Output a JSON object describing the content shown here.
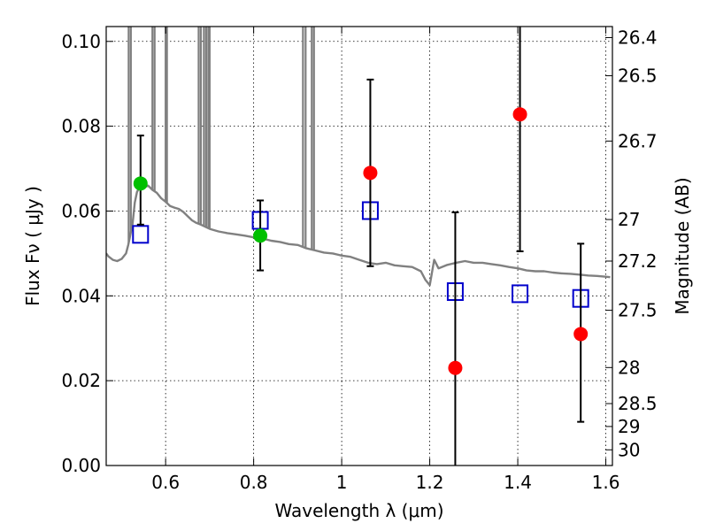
{
  "chart_data": {
    "type": "scatter",
    "xlabel": "Wavelength  λ (μm)",
    "ylabel": "Flux  Fν  ( μJy )",
    "ylabel_right": "Magnitude (AB)",
    "xlim": [
      0.465,
      1.615
    ],
    "ylim": [
      0.0,
      0.1035
    ],
    "grid": true,
    "x_ticks": [
      0.6,
      0.8,
      1.0,
      1.2,
      1.4,
      1.6
    ],
    "x_tick_labels": [
      "0.6",
      "0.8",
      "1",
      "1.2",
      "1.4",
      "1.6"
    ],
    "y_ticks": [
      0.0,
      0.02,
      0.04,
      0.06,
      0.08,
      0.1
    ],
    "y_tick_labels": [
      "0.00",
      "0.02",
      "0.04",
      "0.06",
      "0.08",
      "0.10"
    ],
    "mag_ticks": [
      {
        "label": "26.4",
        "flux": 0.1009
      },
      {
        "label": "26.5",
        "flux": 0.0919
      },
      {
        "label": "26.7",
        "flux": 0.0765
      },
      {
        "label": "27",
        "flux": 0.058
      },
      {
        "label": "27.2",
        "flux": 0.0482
      },
      {
        "label": "27.5",
        "flux": 0.0366
      },
      {
        "label": "28",
        "flux": 0.0231
      },
      {
        "label": "28.5",
        "flux": 0.0146
      },
      {
        "label": "29",
        "flux": 0.0092
      },
      {
        "label": "30",
        "flux": 0.0037
      }
    ],
    "series": [
      {
        "name": "template SED",
        "style": "line",
        "color": "#808080",
        "x": [
          0.465,
          0.47,
          0.48,
          0.49,
          0.5,
          0.51,
          0.515,
          0.52,
          0.525,
          0.53,
          0.535,
          0.54,
          0.55,
          0.56,
          0.57,
          0.58,
          0.59,
          0.6,
          0.61,
          0.62,
          0.63,
          0.64,
          0.65,
          0.66,
          0.67,
          0.68,
          0.69,
          0.7,
          0.72,
          0.74,
          0.76,
          0.78,
          0.8,
          0.82,
          0.84,
          0.86,
          0.88,
          0.9,
          0.92,
          0.94,
          0.96,
          0.98,
          1.0,
          1.02,
          1.04,
          1.06,
          1.08,
          1.1,
          1.12,
          1.14,
          1.16,
          1.18,
          1.19,
          1.2,
          1.21,
          1.22,
          1.24,
          1.26,
          1.28,
          1.3,
          1.32,
          1.34,
          1.36,
          1.38,
          1.4,
          1.42,
          1.44,
          1.46,
          1.48,
          1.5,
          1.52,
          1.54,
          1.56,
          1.58,
          1.6,
          1.61
        ],
        "y": [
          0.05,
          0.0493,
          0.0485,
          0.0482,
          0.0487,
          0.05,
          0.052,
          0.0545,
          0.057,
          0.062,
          0.0645,
          0.0655,
          0.0655,
          0.066,
          0.065,
          0.0643,
          0.063,
          0.0622,
          0.0612,
          0.0608,
          0.0605,
          0.0598,
          0.0588,
          0.0578,
          0.0572,
          0.0568,
          0.0563,
          0.0558,
          0.0552,
          0.0548,
          0.0545,
          0.0542,
          0.0538,
          0.0535,
          0.053,
          0.0527,
          0.0522,
          0.052,
          0.0512,
          0.0507,
          0.0502,
          0.05,
          0.0495,
          0.0492,
          0.0485,
          0.0478,
          0.0475,
          0.0478,
          0.0472,
          0.047,
          0.0468,
          0.0458,
          0.0438,
          0.0425,
          0.0485,
          0.0465,
          0.0473,
          0.0478,
          0.0482,
          0.0478,
          0.0478,
          0.0475,
          0.0472,
          0.0468,
          0.0465,
          0.046,
          0.0458,
          0.0458,
          0.0455,
          0.0453,
          0.0452,
          0.045,
          0.0448,
          0.0447,
          0.0445,
          0.0444
        ]
      },
      {
        "name": "emission spikes",
        "style": "spikes",
        "color": "#808080",
        "x": [
          0.516,
          0.521,
          0.57,
          0.575,
          0.6,
          0.603,
          0.675,
          0.68,
          0.687,
          0.692,
          0.697,
          0.7,
          0.912,
          0.918,
          0.932,
          0.937
        ]
      },
      {
        "name": "model photometry",
        "style": "open-square",
        "color": "#0000cc",
        "x": [
          0.543,
          0.815,
          1.065,
          1.258,
          1.405,
          1.543
        ],
        "y": [
          0.0545,
          0.0578,
          0.0601,
          0.041,
          0.0405,
          0.0394
        ]
      },
      {
        "name": "observed (green)",
        "style": "filled-circle",
        "color": "#00c000",
        "x": [
          0.543,
          0.815
        ],
        "y": [
          0.0665,
          0.0542
        ],
        "err_low": [
          0.0568,
          0.046
        ],
        "err_high": [
          0.0778,
          0.0625
        ]
      },
      {
        "name": "observed (red)",
        "style": "filled-circle",
        "color": "#ff0000",
        "x": [
          1.065,
          1.258,
          1.405,
          1.543
        ],
        "y": [
          0.069,
          0.023,
          0.0828,
          0.031
        ],
        "err_low": [
          0.047,
          0.0,
          0.0505,
          0.0103
        ],
        "err_high": [
          0.091,
          0.0597,
          0.1035,
          0.0523
        ]
      }
    ]
  }
}
